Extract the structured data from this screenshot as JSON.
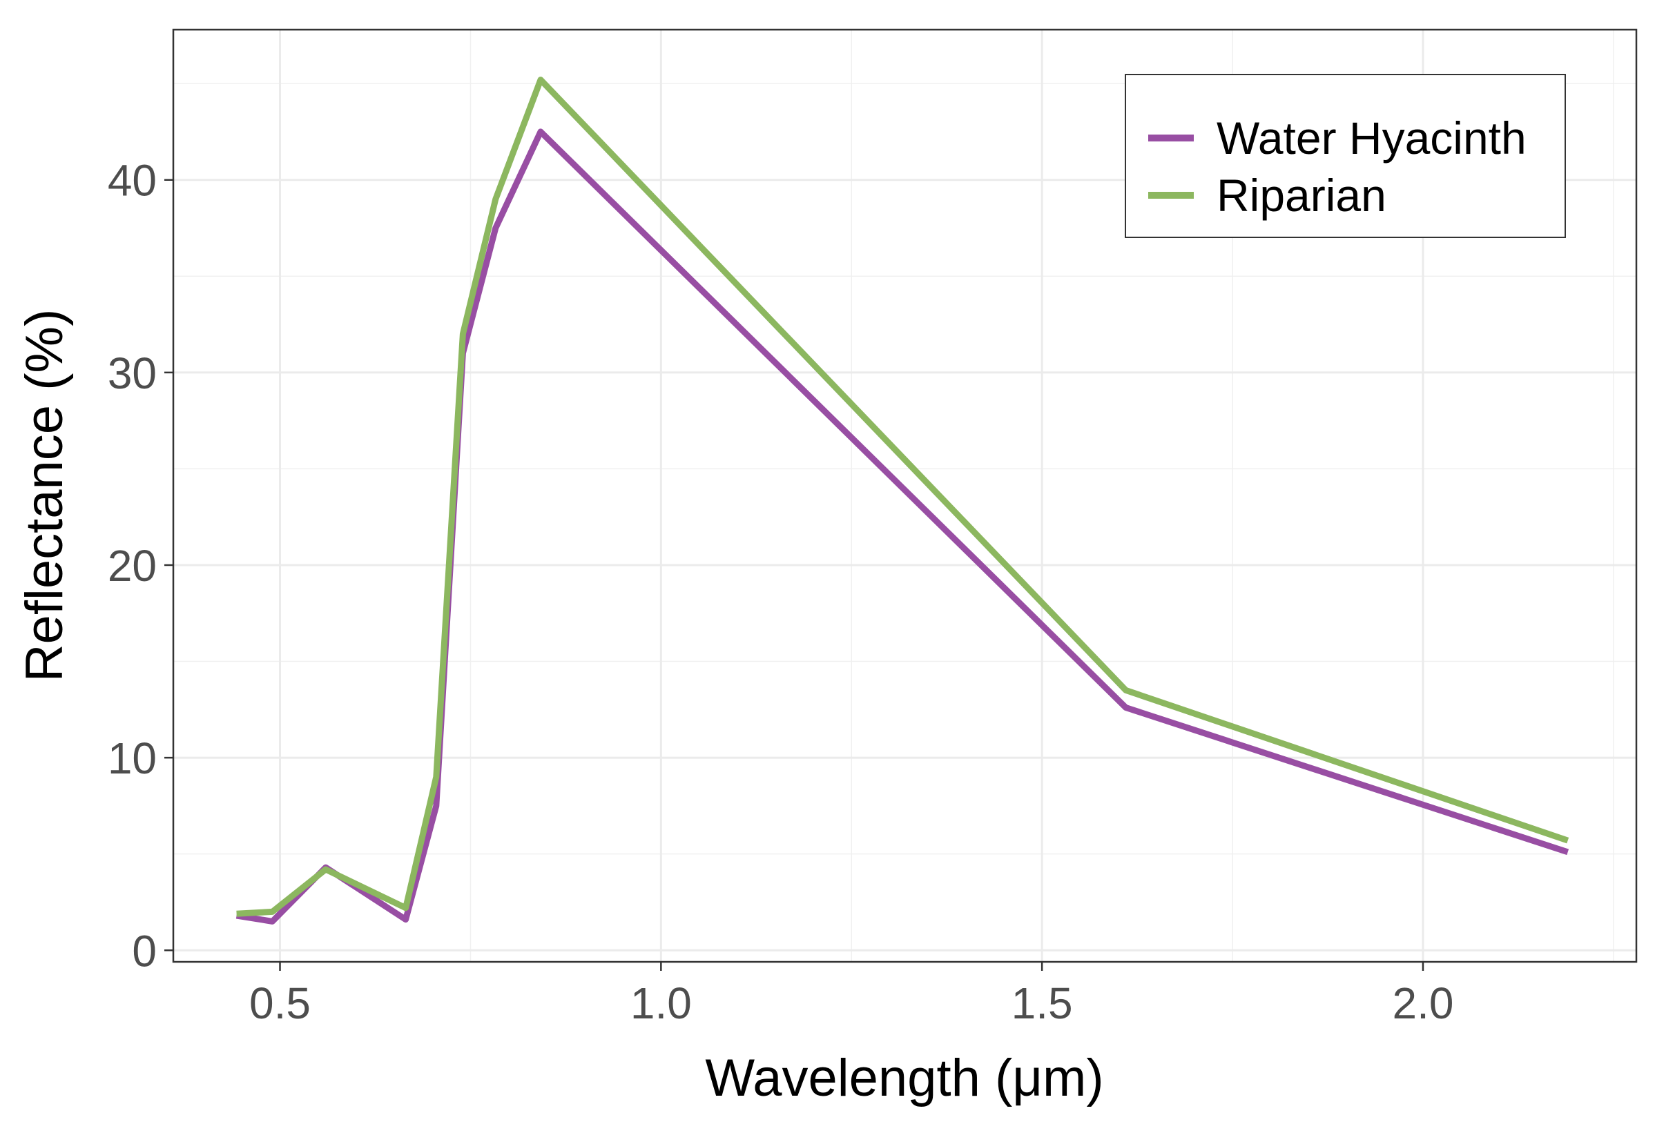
{
  "chart_data": {
    "type": "line",
    "title": "",
    "xlabel": "Wavelength (μm)",
    "ylabel": "Reflectance (%)",
    "xlim": [
      0.36,
      2.28
    ],
    "ylim": [
      -0.6,
      47.8
    ],
    "x_ticks": [
      0.5,
      1.0,
      1.5,
      2.0
    ],
    "x_tick_labels": [
      "0.5",
      "1.0",
      "1.5",
      "2.0"
    ],
    "y_ticks": [
      0,
      10,
      20,
      30,
      40
    ],
    "y_tick_labels": [
      "0",
      "10",
      "20",
      "30",
      "40"
    ],
    "grid": true,
    "legend_position": "top-right",
    "x": [
      0.443,
      0.49,
      0.56,
      0.665,
      0.705,
      0.74,
      0.783,
      0.842,
      1.61,
      2.19
    ],
    "series": [
      {
        "name": "Water Hyacinth",
        "color": "#984ea3",
        "values": [
          1.8,
          1.5,
          4.3,
          1.6,
          7.5,
          31.0,
          37.5,
          42.5,
          12.6,
          5.1
        ]
      },
      {
        "name": "Riparian",
        "color": "#8cb75f",
        "values": [
          1.9,
          2.0,
          4.2,
          2.2,
          9.0,
          32.0,
          39.0,
          45.2,
          13.5,
          5.7
        ]
      }
    ]
  }
}
